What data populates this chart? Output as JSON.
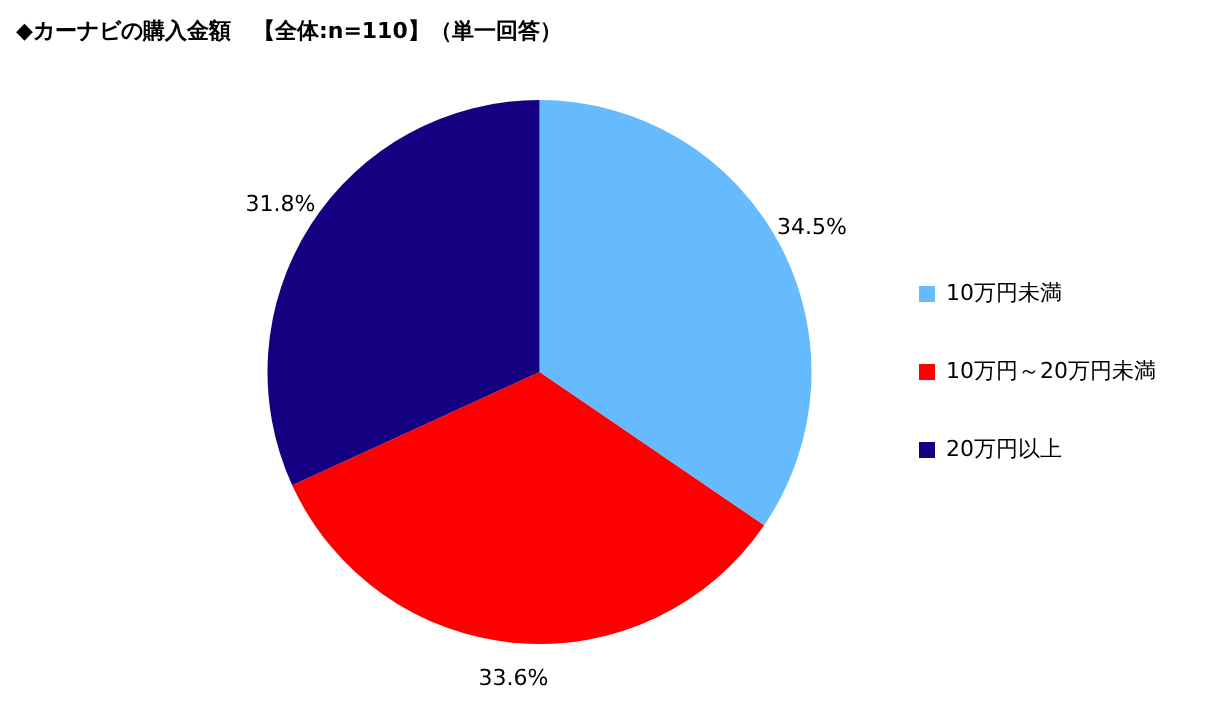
{
  "chart_data": {
    "type": "pie",
    "title": "◆カーナビの購入金額　【全体:n=110】（単一回答）",
    "categories": [
      "10万円未満",
      "10万円～20万円未満",
      "20万円以上"
    ],
    "values": [
      34.5,
      33.6,
      31.8
    ],
    "value_labels": [
      "34.5%",
      "33.6%",
      "31.8%"
    ],
    "colors": [
      "#66bbff",
      "#ff0000",
      "#140080"
    ],
    "legend": "right"
  }
}
